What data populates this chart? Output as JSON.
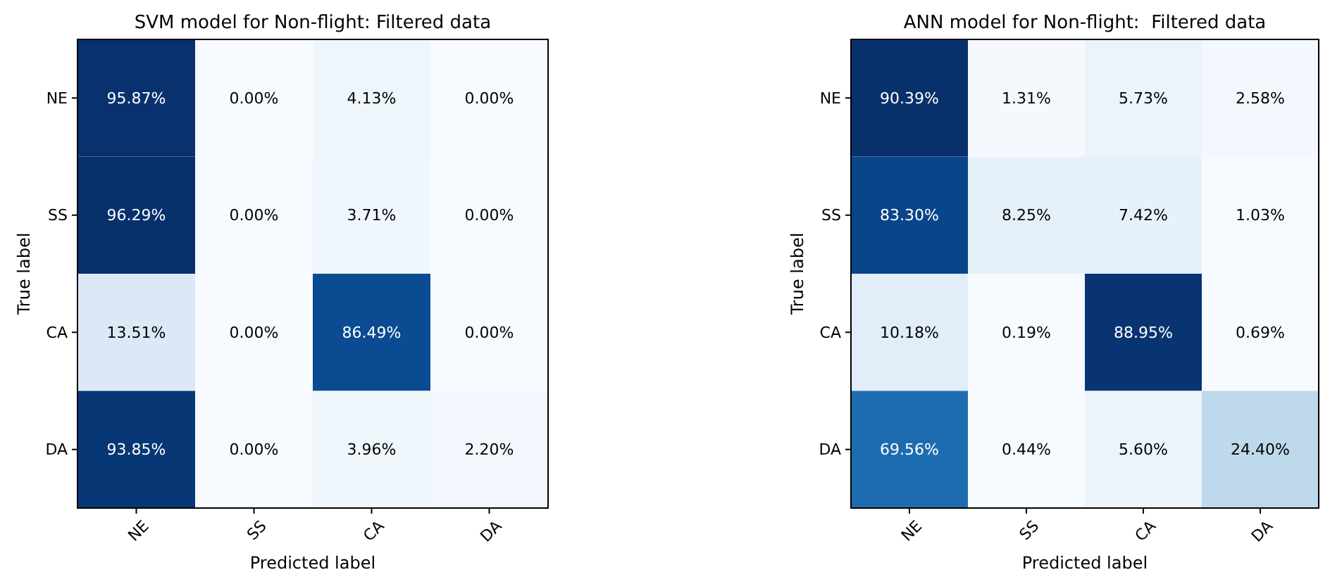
{
  "chart_data": [
    {
      "type": "heatmap",
      "title": "SVM model for Non-flight: Filtered data",
      "xlabel": "Predicted label",
      "ylabel": "True label",
      "categories": [
        "NE",
        "SS",
        "CA",
        "DA"
      ],
      "y_categories": [
        "NE",
        "SS",
        "CA",
        "DA"
      ],
      "cells": [
        [
          95.87,
          0.0,
          4.13,
          0.0
        ],
        [
          96.29,
          0.0,
          3.71,
          0.0
        ],
        [
          13.51,
          0.0,
          86.49,
          0.0
        ],
        [
          93.85,
          0.0,
          3.96,
          2.2
        ]
      ],
      "cell_labels": [
        [
          "95.87%",
          "0.00%",
          "4.13%",
          "0.00%"
        ],
        [
          "96.29%",
          "0.00%",
          "3.71%",
          "0.00%"
        ],
        [
          "13.51%",
          "0.00%",
          "86.49%",
          "0.00%"
        ],
        [
          "93.85%",
          "0.00%",
          "3.96%",
          "2.20%"
        ]
      ]
    },
    {
      "type": "heatmap",
      "title": "ANN model for Non-flight:  Filtered data",
      "xlabel": "Predicted label",
      "ylabel": "True label",
      "categories": [
        "NE",
        "SS",
        "CA",
        "DA"
      ],
      "y_categories": [
        "NE",
        "SS",
        "CA",
        "DA"
      ],
      "cells": [
        [
          90.39,
          1.31,
          5.73,
          2.58
        ],
        [
          83.3,
          8.25,
          7.42,
          1.03
        ],
        [
          10.18,
          0.19,
          88.95,
          0.69
        ],
        [
          69.56,
          0.44,
          5.6,
          24.4
        ]
      ],
      "cell_labels": [
        [
          "90.39%",
          "1.31%",
          "5.73%",
          "2.58%"
        ],
        [
          "83.30%",
          "8.25%",
          "7.42%",
          "1.03%"
        ],
        [
          "10.18%",
          "0.19%",
          "88.95%",
          "0.69%"
        ],
        [
          "69.56%",
          "0.44%",
          "5.60%",
          "24.40%"
        ]
      ]
    }
  ]
}
